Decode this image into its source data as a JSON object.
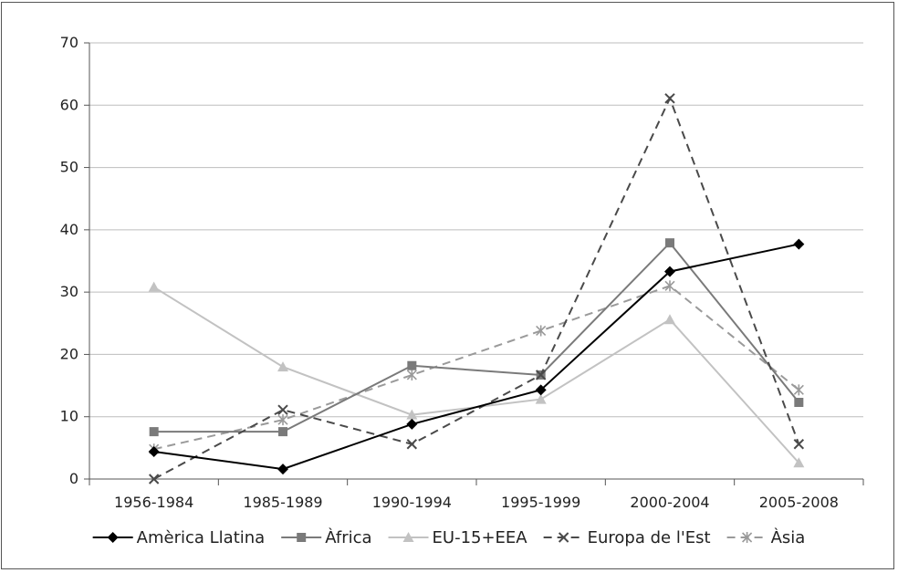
{
  "chart_data": {
    "type": "line",
    "categories": [
      "1956-1984",
      "1985-1989",
      "1990-1994",
      "1995-1999",
      "2000-2004",
      "2005-2008"
    ],
    "ylim": [
      0,
      70
    ],
    "yticks": [
      0,
      10,
      20,
      30,
      40,
      50,
      60,
      70
    ],
    "grid": true,
    "legend_position": "bottom",
    "series": [
      {
        "name": "Amèrica Llatina",
        "values": [
          4.4,
          1.6,
          8.8,
          14.3,
          33.3,
          37.7
        ],
        "color": "#000000",
        "dash": "solid",
        "marker": "diamond"
      },
      {
        "name": "Àfrica",
        "values": [
          7.6,
          7.6,
          18.2,
          16.7,
          37.9,
          12.3
        ],
        "color": "#7a7a7a",
        "dash": "solid",
        "marker": "square"
      },
      {
        "name": "EU-15+EEA",
        "values": [
          30.8,
          18.0,
          10.3,
          12.8,
          25.6,
          2.6
        ],
        "color": "#c2c2c2",
        "dash": "solid",
        "marker": "triangle"
      },
      {
        "name": "Europa de l'Est",
        "values": [
          0.0,
          11.1,
          5.6,
          16.7,
          61.1,
          5.6
        ],
        "color": "#4a4a4a",
        "dash": "dashed",
        "marker": "x"
      },
      {
        "name": "Àsia",
        "values": [
          4.8,
          9.5,
          16.7,
          23.8,
          31.0,
          14.3
        ],
        "color": "#9a9a9a",
        "dash": "dashed",
        "marker": "star"
      }
    ]
  }
}
